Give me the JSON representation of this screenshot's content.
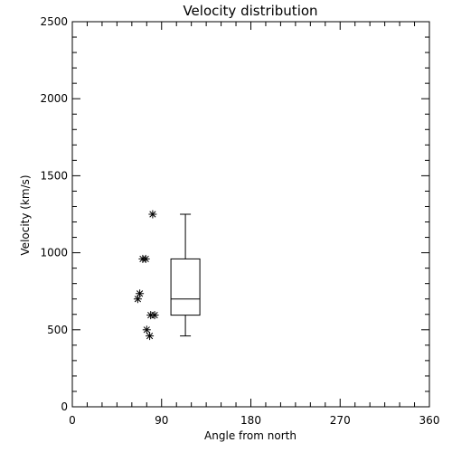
{
  "chart_data": {
    "type": "scatter",
    "title": "Velocity distribution",
    "xlabel": "Angle from north",
    "ylabel": "Velocity (km/s)",
    "xlim": [
      0,
      360
    ],
    "ylim": [
      0,
      2500
    ],
    "x_ticks": [
      0,
      90,
      180,
      270,
      360
    ],
    "y_ticks": [
      0,
      500,
      1000,
      1500,
      2000,
      2500
    ],
    "x_tick_labels": [
      "0",
      "90",
      "180",
      "270",
      "360"
    ],
    "y_tick_labels": [
      "0",
      "500",
      "1000",
      "1500",
      "2000",
      "2500"
    ],
    "grid": false,
    "marker": "asterisk",
    "points": [
      {
        "x": 81,
        "y": 1250
      },
      {
        "x": 71,
        "y": 960
      },
      {
        "x": 74,
        "y": 960
      },
      {
        "x": 68,
        "y": 735
      },
      {
        "x": 66,
        "y": 700
      },
      {
        "x": 79,
        "y": 595
      },
      {
        "x": 83,
        "y": 595
      },
      {
        "x": 75,
        "y": 500
      },
      {
        "x": 78,
        "y": 460
      }
    ],
    "boxplot": {
      "x": 114,
      "whisker_low": 460,
      "q1": 595,
      "median": 700,
      "q3": 960,
      "whisker_high": 1250
    }
  }
}
